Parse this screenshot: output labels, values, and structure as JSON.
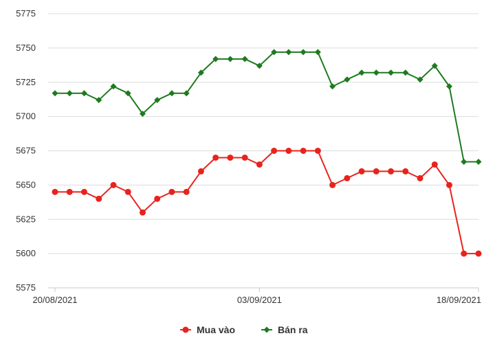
{
  "chart_data": {
    "type": "line",
    "title": "",
    "xlabel": "",
    "ylabel": "",
    "ylim": [
      5575,
      5775
    ],
    "yticks": [
      5575,
      5600,
      5625,
      5650,
      5675,
      5700,
      5725,
      5750,
      5775
    ],
    "x_tick_labels": [
      {
        "index": 0,
        "label": "20/08/2021"
      },
      {
        "index": 14,
        "label": "03/09/2021"
      },
      {
        "index": 29,
        "label": "18/09/2021"
      }
    ],
    "grid": "horizontal",
    "legend_position": "bottom-center",
    "series": [
      {
        "name": "Mua vào",
        "color": "#e8231d",
        "marker": "circle",
        "values": [
          5645,
          5645,
          5645,
          5640,
          5650,
          5645,
          5630,
          5640,
          5645,
          5645,
          5660,
          5670,
          5670,
          5670,
          5665,
          5675,
          5675,
          5675,
          5675,
          5650,
          5655,
          5660,
          5660,
          5660,
          5660,
          5655,
          5665,
          5650,
          5600,
          5600
        ]
      },
      {
        "name": "Bán ra",
        "color": "#1f7a1f",
        "marker": "diamond",
        "values": [
          5717,
          5717,
          5717,
          5712,
          5722,
          5717,
          5702,
          5712,
          5717,
          5717,
          5732,
          5742,
          5742,
          5742,
          5737,
          5747,
          5747,
          5747,
          5747,
          5722,
          5727,
          5732,
          5732,
          5732,
          5732,
          5727,
          5737,
          5722,
          5667,
          5667
        ]
      }
    ]
  }
}
